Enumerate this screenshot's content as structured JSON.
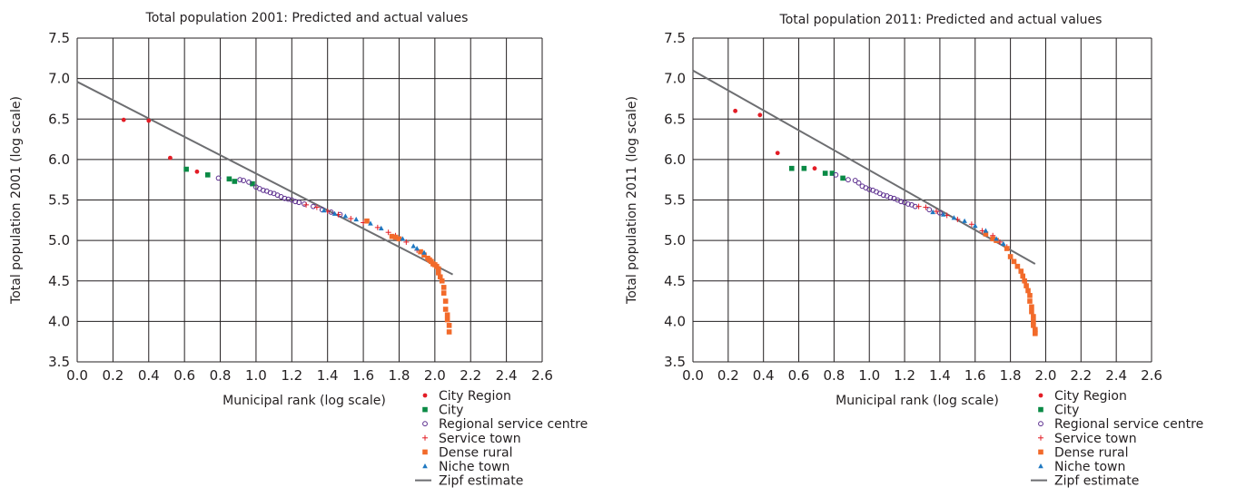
{
  "chart_data": [
    {
      "type": "scatter",
      "title": "Total population 2001: Predicted and actual values",
      "xlabel": "Municipal rank (log scale)",
      "ylabel": "Total population 2001 (log scale)",
      "xlim": [
        0.0,
        2.6
      ],
      "ylim": [
        3.5,
        7.5
      ],
      "xticks": [
        "0.0",
        "0.2",
        "0.4",
        "0.6",
        "0.8",
        "1.0",
        "1.2",
        "1.4",
        "1.6",
        "1.8",
        "2.0",
        "2.2",
        "2.4",
        "2.6"
      ],
      "yticks": [
        "3.5",
        "4.0",
        "4.5",
        "5.0",
        "5.5",
        "6.0",
        "6.5",
        "7.0",
        "7.5"
      ],
      "grid": true,
      "legend_position": "bottom-right",
      "line": {
        "name": "Zipf estimate",
        "x": [
          0.0,
          2.1
        ],
        "y": [
          6.96,
          4.58
        ],
        "color": "#6d6e71"
      },
      "series": [
        {
          "name": "City Region",
          "marker": "circle",
          "color": "#e31d26",
          "x": [
            0.26,
            0.4,
            0.52,
            0.67
          ],
          "y": [
            6.49,
            6.48,
            6.02,
            5.85
          ]
        },
        {
          "name": "City",
          "marker": "square",
          "color": "#0a8a45",
          "x": [
            0.61,
            0.73,
            0.85,
            0.88,
            0.98
          ],
          "y": [
            5.88,
            5.81,
            5.76,
            5.73,
            5.7
          ]
        },
        {
          "name": "Regional service centre",
          "marker": "open-circle",
          "color": "#5b2d8e",
          "x": [
            0.79,
            0.91,
            0.93,
            0.96,
            1.0,
            1.02,
            1.04,
            1.06,
            1.08,
            1.1,
            1.12,
            1.14,
            1.16,
            1.18,
            1.2,
            1.22,
            1.24,
            1.27,
            1.32,
            1.37,
            1.42,
            1.47
          ],
          "y": [
            5.77,
            5.75,
            5.74,
            5.72,
            5.66,
            5.64,
            5.62,
            5.61,
            5.59,
            5.58,
            5.56,
            5.54,
            5.52,
            5.51,
            5.5,
            5.48,
            5.47,
            5.45,
            5.42,
            5.38,
            5.35,
            5.32
          ]
        },
        {
          "name": "Service town",
          "marker": "plus",
          "color": "#e31d26",
          "x": [
            1.28,
            1.34,
            1.4,
            1.46,
            1.53,
            1.6,
            1.68,
            1.74,
            1.78,
            1.84,
            1.9
          ],
          "y": [
            5.44,
            5.41,
            5.36,
            5.32,
            5.27,
            5.22,
            5.16,
            5.1,
            5.06,
            4.98,
            4.88
          ]
        },
        {
          "name": "Dense rural",
          "marker": "square",
          "color": "#f26a2a",
          "x": [
            1.62,
            1.76,
            1.78,
            1.8,
            1.92,
            1.94,
            1.96,
            1.97,
            1.98,
            1.99,
            2.0,
            2.01,
            2.02,
            2.02,
            2.03,
            2.04,
            2.05,
            2.05,
            2.06,
            2.06,
            2.07,
            2.07,
            2.08,
            2.08
          ],
          "y": [
            5.24,
            5.05,
            5.04,
            5.02,
            4.86,
            4.82,
            4.78,
            4.76,
            4.74,
            4.71,
            4.7,
            4.68,
            4.65,
            4.6,
            4.55,
            4.5,
            4.42,
            4.35,
            4.25,
            4.15,
            4.08,
            4.02,
            3.95,
            3.87
          ]
        },
        {
          "name": "Niche town",
          "marker": "triangle",
          "color": "#1f78c1",
          "x": [
            1.38,
            1.44,
            1.5,
            1.56,
            1.64,
            1.7,
            1.82,
            1.88,
            1.9,
            1.94
          ],
          "y": [
            5.37,
            5.33,
            5.3,
            5.26,
            5.21,
            5.15,
            5.02,
            4.93,
            4.9,
            4.85
          ]
        }
      ]
    },
    {
      "type": "scatter",
      "title": "Total population 2011: Predicted and actual values",
      "xlabel": "Municipal rank (log scale)",
      "ylabel": "Total population 2011 (log scale)",
      "xlim": [
        0.0,
        2.6
      ],
      "ylim": [
        3.5,
        7.5
      ],
      "xticks": [
        "0.0",
        "0.2",
        "0.4",
        "0.6",
        "0.8",
        "1.0",
        "1.2",
        "1.4",
        "1.6",
        "1.8",
        "2.0",
        "2.2",
        "2.4",
        "2.6"
      ],
      "yticks": [
        "3.5",
        "4.0",
        "4.5",
        "5.0",
        "5.5",
        "6.0",
        "6.5",
        "7.0",
        "7.5"
      ],
      "grid": true,
      "legend_position": "bottom-right",
      "line": {
        "name": "Zipf estimate",
        "x": [
          0.0,
          1.94
        ],
        "y": [
          7.1,
          4.71
        ],
        "color": "#6d6e71"
      },
      "series": [
        {
          "name": "City Region",
          "marker": "circle",
          "color": "#e31d26",
          "x": [
            0.24,
            0.38,
            0.48,
            0.69
          ],
          "y": [
            6.6,
            6.55,
            6.08,
            5.89
          ]
        },
        {
          "name": "City",
          "marker": "square",
          "color": "#0a8a45",
          "x": [
            0.56,
            0.63,
            0.75,
            0.79,
            0.85
          ],
          "y": [
            5.89,
            5.89,
            5.83,
            5.83,
            5.77
          ]
        },
        {
          "name": "Regional service centre",
          "marker": "open-circle",
          "color": "#5b2d8e",
          "x": [
            0.81,
            0.88,
            0.92,
            0.94,
            0.96,
            0.98,
            1.0,
            1.02,
            1.04,
            1.06,
            1.08,
            1.1,
            1.12,
            1.14,
            1.16,
            1.18,
            1.2,
            1.22,
            1.24,
            1.26,
            1.34,
            1.4
          ],
          "y": [
            5.81,
            5.75,
            5.74,
            5.71,
            5.67,
            5.65,
            5.63,
            5.62,
            5.6,
            5.58,
            5.56,
            5.55,
            5.53,
            5.52,
            5.5,
            5.48,
            5.47,
            5.45,
            5.44,
            5.42,
            5.38,
            5.34
          ]
        },
        {
          "name": "Service town",
          "marker": "plus",
          "color": "#e31d26",
          "x": [
            1.28,
            1.32,
            1.38,
            1.44,
            1.5,
            1.58,
            1.64,
            1.7,
            1.74,
            1.78
          ],
          "y": [
            5.42,
            5.41,
            5.36,
            5.31,
            5.26,
            5.2,
            5.12,
            5.06,
            4.98,
            4.92
          ]
        },
        {
          "name": "Dense rural",
          "marker": "square",
          "color": "#f26a2a",
          "x": [
            1.66,
            1.7,
            1.72,
            1.78,
            1.8,
            1.82,
            1.84,
            1.86,
            1.87,
            1.88,
            1.89,
            1.9,
            1.91,
            1.91,
            1.92,
            1.92,
            1.93,
            1.93,
            1.93,
            1.94,
            1.94,
            1.94
          ],
          "y": [
            5.08,
            5.02,
            5.0,
            4.9,
            4.8,
            4.74,
            4.68,
            4.62,
            4.56,
            4.5,
            4.44,
            4.38,
            4.32,
            4.25,
            4.18,
            4.12,
            4.06,
            4.0,
            3.95,
            3.9,
            3.87,
            3.85
          ]
        },
        {
          "name": "Niche town",
          "marker": "triangle",
          "color": "#1f78c1",
          "x": [
            1.36,
            1.42,
            1.48,
            1.54,
            1.6,
            1.66,
            1.72,
            1.76
          ],
          "y": [
            5.35,
            5.32,
            5.28,
            5.24,
            5.18,
            5.12,
            5.02,
            4.96
          ]
        }
      ]
    }
  ]
}
